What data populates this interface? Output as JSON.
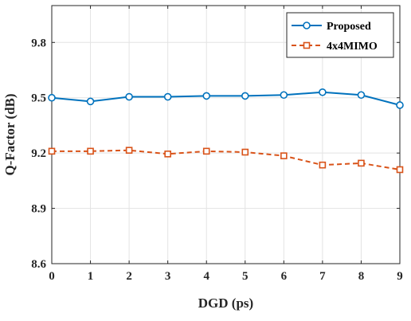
{
  "chart_data": {
    "type": "line",
    "title": "",
    "xlabel": "DGD (ps)",
    "ylabel": "Q-Factor (dB)",
    "x": [
      0,
      1,
      2,
      3,
      4,
      5,
      6,
      7,
      8,
      9
    ],
    "xlim": [
      0,
      9
    ],
    "ylim": [
      8.6,
      10.0
    ],
    "xticks": [
      "0",
      "1",
      "2",
      "3",
      "4",
      "5",
      "6",
      "7",
      "8",
      "9"
    ],
    "yticks": [
      "8.6",
      "8.9",
      "9.2",
      "9.5",
      "9.8"
    ],
    "ytick_values": [
      8.6,
      8.9,
      9.2,
      9.5,
      9.8
    ],
    "grid": true,
    "legend_position": "top-right",
    "series": [
      {
        "name": "Proposed",
        "values": [
          9.5,
          9.48,
          9.505,
          9.505,
          9.51,
          9.51,
          9.515,
          9.53,
          9.515,
          9.46
        ],
        "color": "#0072BD",
        "line_style": "solid",
        "marker": "circle"
      },
      {
        "name": "4x4MIMO",
        "values": [
          9.21,
          9.21,
          9.215,
          9.195,
          9.21,
          9.205,
          9.185,
          9.135,
          9.145,
          9.11
        ],
        "color": "#D95319",
        "line_style": "dashed",
        "marker": "square"
      }
    ]
  }
}
